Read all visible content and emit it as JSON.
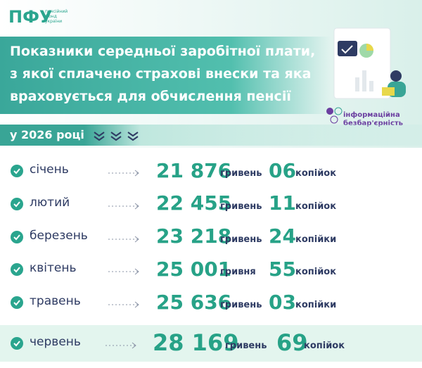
{
  "logo": {
    "mark": "ПФУ",
    "text": [
      "пенсійний",
      "фонд",
      "україни"
    ]
  },
  "title": [
    "Показники середньої заробітної плати,",
    "з якої сплачено страхові внески та яка",
    "враховується для обчислення пенсії"
  ],
  "badge": [
    "інформаційна",
    "безбар'єрність"
  ],
  "period": "у 2026 році",
  "rows": [
    {
      "month": "січень",
      "hryvnias": "21 876",
      "hryvnia_word": "гривень",
      "kopecks": "06",
      "kopeck_word": "копійок"
    },
    {
      "month": "лютий",
      "hryvnias": "22 455",
      "hryvnia_word": "гривень",
      "kopecks": "11",
      "kopeck_word": "копійок"
    },
    {
      "month": "березень",
      "hryvnias": "23 218",
      "hryvnia_word": "гривень",
      "kopecks": "24",
      "kopeck_word": "копійки"
    },
    {
      "month": "квітень",
      "hryvnias": "25 001",
      "hryvnia_word": "гривня",
      "kopecks": "55",
      "kopeck_word": "копійок"
    },
    {
      "month": "травень",
      "hryvnias": "25 636",
      "hryvnia_word": "гривень",
      "kopecks": "03",
      "kopeck_word": "копійки"
    },
    {
      "month": "червень",
      "hryvnias": "28 169",
      "hryvnia_word": "гривень",
      "kopecks": "69",
      "kopeck_word": "копійок"
    }
  ]
}
